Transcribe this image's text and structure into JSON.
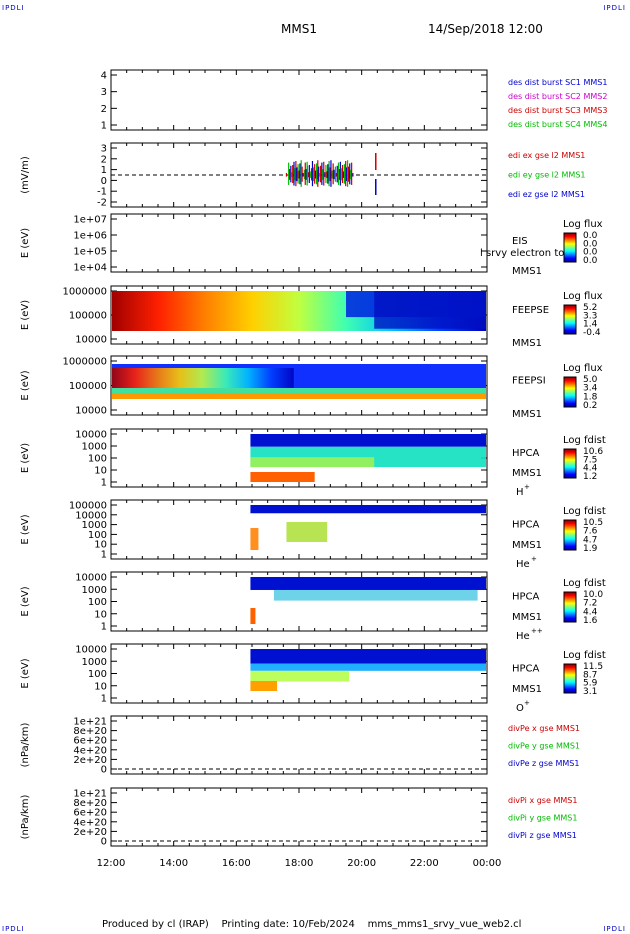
{
  "corners": {
    "tl": "IPDLI",
    "tr": "IPDLI",
    "bl": "IPDLI",
    "br": "IPDLI"
  },
  "header": {
    "mission": "MMS1",
    "datetime": "14/Sep/2018 12:00"
  },
  "footer": {
    "produced": "Produced by cl (IRAP)",
    "printing": "Printing date: 10/Feb/2024",
    "file": "mms_mms1_srvy_vue_web2.cl"
  },
  "colors": {
    "blue": "#0000cc",
    "magenta": "#cc00cc",
    "red": "#cc0000",
    "green": "#00bb00"
  },
  "chart_data": [
    {
      "id": "panel-des-dist",
      "type": "line",
      "ylabel": "",
      "yticks": [
        "1",
        "2",
        "3",
        "4"
      ],
      "legend": [
        {
          "text": "des dist burst SC1 MMS1",
          "color": "#0000cc"
        },
        {
          "text": "des dist burst SC2 MMS2",
          "color": "#cc00cc"
        },
        {
          "text": "des dist burst SC3 MMS3",
          "color": "#cc0000"
        },
        {
          "text": "des dist burst SC4 MMS4",
          "color": "#00bb00"
        }
      ]
    },
    {
      "id": "panel-edi",
      "type": "line",
      "ylabel": "(mV/m)",
      "yticks": [
        "-2",
        "-1",
        "0",
        "1",
        "2",
        "3"
      ],
      "legend": [
        {
          "text": "edi ex gse l2 MMS1",
          "color": "#cc0000"
        },
        {
          "text": "edi ey gse l2 MMS1",
          "color": "#00bb00"
        },
        {
          "text": "edi ez gse l2 MMS1",
          "color": "#0000cc"
        }
      ]
    },
    {
      "id": "panel-eis",
      "type": "heatmap",
      "ylabel": "E (eV)",
      "yticks": [
        "1e+04",
        "1e+05",
        "1e+06",
        "1e+07"
      ],
      "labels": [
        "EIS",
        "MMS1"
      ],
      "overlap": "l srvy electron to",
      "colorbar": {
        "title": "Log flux",
        "ticks": [
          "0.0",
          "0.0",
          "0.0",
          "0.0"
        ]
      }
    },
    {
      "id": "panel-feepse",
      "type": "heatmap",
      "ylabel": "E (eV)",
      "yticks": [
        "10000",
        "100000",
        "1000000"
      ],
      "labels": [
        "FEEPSE",
        "MMS1"
      ],
      "colorbar": {
        "title": "Log flux",
        "ticks": [
          "5.2",
          "3.3",
          "1.4",
          "-0.4"
        ]
      }
    },
    {
      "id": "panel-feepsi",
      "type": "heatmap",
      "ylabel": "E (eV)",
      "yticks": [
        "10000",
        "100000",
        "1000000"
      ],
      "labels": [
        "FEEPSI",
        "MMS1"
      ],
      "colorbar": {
        "title": "Log flux",
        "ticks": [
          "5.0",
          "3.4",
          "1.8",
          "0.2"
        ]
      }
    },
    {
      "id": "panel-hpca-h",
      "type": "heatmap",
      "ylabel": "E (eV)",
      "yticks": [
        "1",
        "10",
        "100",
        "1000",
        "10000"
      ],
      "labels": [
        "HPCA",
        "MMS1"
      ],
      "species": "H",
      "charge": "+",
      "colorbar": {
        "title": "Log fdist",
        "ticks": [
          "10.6",
          "7.5",
          "4.4",
          "1.2"
        ]
      }
    },
    {
      "id": "panel-hpca-he",
      "type": "heatmap",
      "ylabel": "E (eV)",
      "yticks": [
        "1",
        "10",
        "100",
        "1000",
        "10000",
        "100000"
      ],
      "labels": [
        "HPCA",
        "MMS1"
      ],
      "species": "He",
      "charge": "+",
      "colorbar": {
        "title": "Log fdist",
        "ticks": [
          "10.5",
          "7.6",
          "4.7",
          "1.9"
        ]
      }
    },
    {
      "id": "panel-hpca-he2",
      "type": "heatmap",
      "ylabel": "E (eV)",
      "yticks": [
        "1",
        "10",
        "100",
        "1000",
        "10000"
      ],
      "labels": [
        "HPCA",
        "MMS1"
      ],
      "species": "He",
      "charge": "++",
      "colorbar": {
        "title": "Log fdist",
        "ticks": [
          "10.0",
          "7.2",
          "4.4",
          "1.6"
        ]
      }
    },
    {
      "id": "panel-hpca-o",
      "type": "heatmap",
      "ylabel": "E (eV)",
      "yticks": [
        "1",
        "10",
        "100",
        "1000",
        "10000"
      ],
      "labels": [
        "HPCA",
        "MMS1"
      ],
      "species": "O",
      "charge": "+",
      "colorbar": {
        "title": "Log fdist",
        "ticks": [
          "11.5",
          "8.7",
          "5.9",
          "3.1"
        ]
      }
    },
    {
      "id": "panel-divpe",
      "type": "line",
      "ylabel": "(nPa/km)",
      "yticks": [
        "0",
        "2e+20",
        "4e+20",
        "6e+20",
        "8e+20",
        "1e+21"
      ],
      "legend": [
        {
          "text": "divPe x gse MMS1",
          "color": "#cc0000"
        },
        {
          "text": "divPe y gse MMS1",
          "color": "#00bb00"
        },
        {
          "text": "divPe z gse MMS1",
          "color": "#0000cc"
        }
      ]
    },
    {
      "id": "panel-divpi",
      "type": "line",
      "ylabel": "(nPa/km)",
      "yticks": [
        "0",
        "2e+20",
        "4e+20",
        "6e+20",
        "8e+20",
        "1e+21"
      ],
      "legend": [
        {
          "text": "divPi x gse MMS1",
          "color": "#cc0000"
        },
        {
          "text": "divPi y gse MMS1",
          "color": "#00bb00"
        },
        {
          "text": "divPi z gse MMS1",
          "color": "#0000cc"
        }
      ]
    }
  ],
  "time_axis": {
    "ticks": [
      "12:00",
      "14:00",
      "16:00",
      "18:00",
      "20:00",
      "22:00",
      "00:00"
    ],
    "start_hours": 12,
    "end_hours": 24
  }
}
